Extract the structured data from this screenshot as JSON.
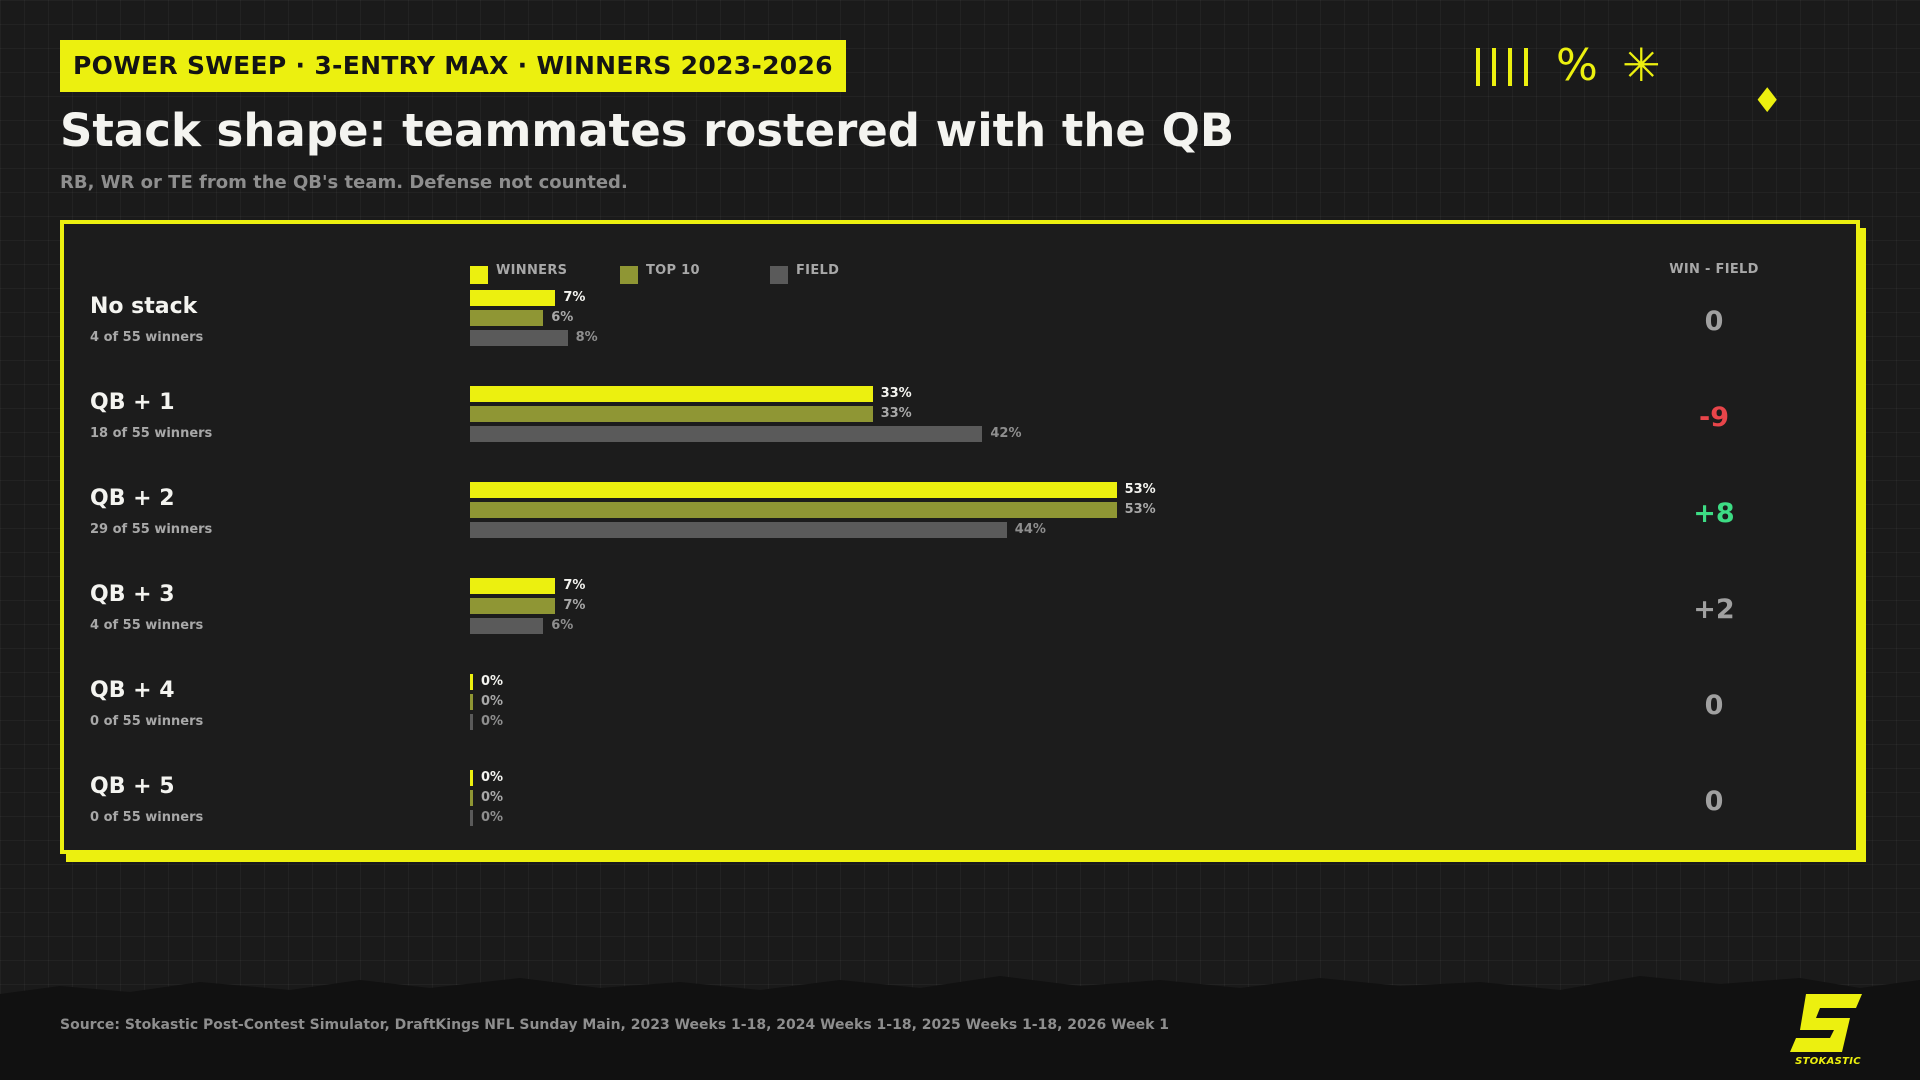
{
  "header": {
    "tag": "POWER SWEEP · 3-ENTRY MAX · WINNERS 2023-2026",
    "title": "Stack shape: teammates rostered with the QB",
    "subtitle": "RB, WR or TE from the QB's team. Defense not counted."
  },
  "decorations": {
    "percent_glyph": "%",
    "asterisk_glyph": "✳",
    "diamond_glyph": "♦",
    "icons": [
      "tally-bars-icon",
      "percent-icon",
      "asterisk-icon",
      "diamond-icon"
    ]
  },
  "colors": {
    "accent": "#ecf00f",
    "winners": "#ecf00f",
    "top10": "#8f9634",
    "field": "#5a5a5a",
    "positive": "#3ddc84",
    "negative": "#e8454a",
    "neutral": "#a0a0a0"
  },
  "chart_data": {
    "type": "bar",
    "orientation": "horizontal",
    "xlim": [
      0,
      100
    ],
    "value_unit": "%",
    "legend": [
      "WINNERS",
      "TOP 10",
      "FIELD"
    ],
    "legend_placement": "top",
    "delta_header": "WIN - FIELD",
    "categories": [
      "No stack",
      "QB + 1",
      "QB + 2",
      "QB + 3",
      "QB + 4",
      "QB + 5"
    ],
    "category_notes": [
      "4 of 55 winners",
      "18 of 55 winners",
      "29 of 55 winners",
      "4 of 55 winners",
      "0 of 55 winners",
      "0 of 55 winners"
    ],
    "series": [
      {
        "name": "WINNERS",
        "values": [
          7,
          33,
          53,
          7,
          0,
          0
        ]
      },
      {
        "name": "TOP 10",
        "values": [
          6,
          33,
          53,
          7,
          0,
          0
        ]
      },
      {
        "name": "FIELD",
        "values": [
          8,
          42,
          44,
          6,
          0,
          0
        ]
      }
    ],
    "deltas": [
      "0",
      "-9",
      "+8",
      "+2",
      "0",
      "0"
    ]
  },
  "footer": {
    "source": "Source: Stokastic Post-Contest Simulator, DraftKings NFL Sunday Main, 2023 Weeks 1-18, 2024 Weeks 1-18, 2025 Weeks 1-18, 2026 Week 1",
    "brand": "STOKASTIC"
  }
}
